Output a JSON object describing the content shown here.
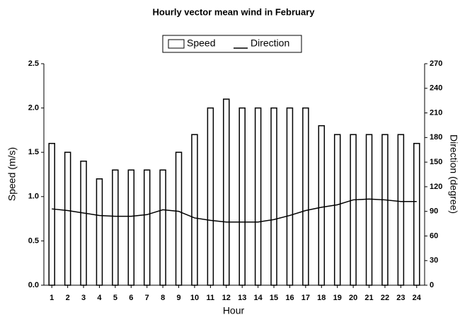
{
  "chart_data": {
    "type": "bar_line",
    "title": "Hourly vector mean wind in February",
    "x_label": "Hour",
    "y_label": "Speed (m/s)",
    "y2_label": "Direction (degree)",
    "categories": [
      1,
      2,
      3,
      4,
      5,
      6,
      7,
      8,
      9,
      10,
      11,
      12,
      13,
      14,
      15,
      16,
      17,
      18,
      19,
      20,
      21,
      22,
      23,
      24
    ],
    "series": [
      {
        "name": "Speed",
        "color": "#ffffff",
        "values": [
          1.6,
          1.5,
          1.4,
          1.2,
          1.3,
          1.3,
          1.3,
          1.3,
          1.5,
          1.7,
          2.0,
          2.1,
          2.0,
          2.0,
          2.0,
          2.0,
          2.0,
          1.8,
          1.7,
          1.7,
          1.7,
          1.7,
          1.7,
          1.6
        ]
      },
      {
        "name": "Direction",
        "color": "#000000",
        "axis": "y2",
        "values": [
          93,
          91,
          88,
          85,
          84,
          84,
          86,
          92,
          90,
          82,
          79,
          77,
          77,
          77,
          80,
          85,
          91,
          95,
          98,
          104,
          105,
          104,
          102,
          102
        ]
      }
    ],
    "ylim": [
      0,
      2.5
    ],
    "yticks": [
      {
        "value": 0,
        "label": "0.0"
      },
      0.5,
      {
        "value": 1,
        "label": "1.0"
      },
      1.5,
      {
        "value": 2,
        "label": "2.0"
      },
      2.5
    ],
    "y2lim": [
      0,
      270
    ],
    "y2ticks": [
      0,
      30,
      60,
      90,
      120,
      150,
      180,
      210,
      240,
      270
    ]
  }
}
